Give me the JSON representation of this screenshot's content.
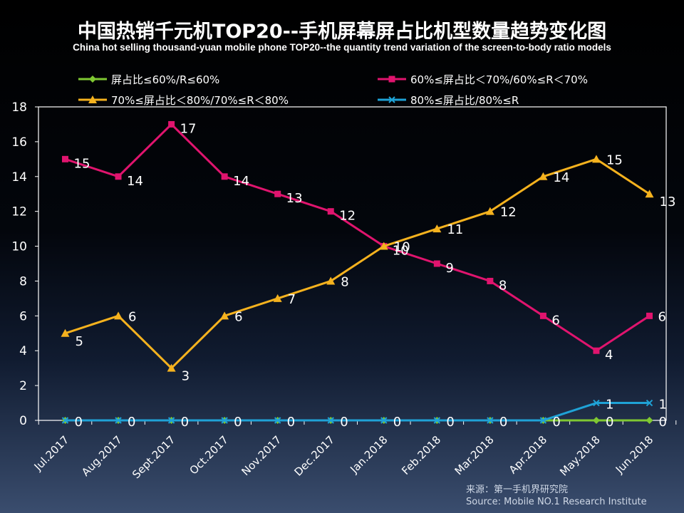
{
  "title": "中国热销千元机TOP20--手机屏幕屏占比机型数量趋势变化图",
  "subtitle": "China hot selling thousand-yuan mobile phone TOP20--the quantity trend variation of the screen-to-body ratio models",
  "source": {
    "cn": "来源：第一手机界研究院",
    "en": "Source: Mobile NO.1 Research Institute"
  },
  "chart_data": {
    "type": "line",
    "categories": [
      "Jul.2017",
      "Aug.2017",
      "Sept.2017",
      "Oct.2017",
      "Nov.2017",
      "Dec.2017",
      "Jan.2018",
      "Feb.2018",
      "Mar.2018",
      "Apr.2018",
      "May.2018",
      "Jun.2018"
    ],
    "ylim": [
      0,
      18
    ],
    "yticks": [
      0,
      2,
      4,
      6,
      8,
      10,
      12,
      14,
      16,
      18
    ],
    "grid": false,
    "legend_position": "top",
    "series": [
      {
        "name": "屏占比≤60%/R≤60%",
        "color": "#7fc832",
        "marker": "diamond",
        "values": [
          0,
          0,
          0,
          0,
          0,
          0,
          0,
          0,
          0,
          0,
          0,
          0
        ]
      },
      {
        "name": "60%≤屏占比＜70%/60%≤R＜70%",
        "color": "#e0146e",
        "marker": "square",
        "values": [
          15,
          14,
          17,
          14,
          13,
          12,
          10,
          9,
          8,
          6,
          4,
          6
        ]
      },
      {
        "name": "70%≤屏占比＜80%/70%≤R＜80%",
        "color": "#f5b21e",
        "marker": "triangle",
        "values": [
          5,
          6,
          3,
          6,
          7,
          8,
          10,
          11,
          12,
          14,
          15,
          13
        ]
      },
      {
        "name": "80%≤屏占比/80%≤R",
        "color": "#1fa2d6",
        "marker": "x",
        "values": [
          0,
          0,
          0,
          0,
          0,
          0,
          0,
          0,
          0,
          0,
          1,
          1
        ]
      }
    ]
  }
}
